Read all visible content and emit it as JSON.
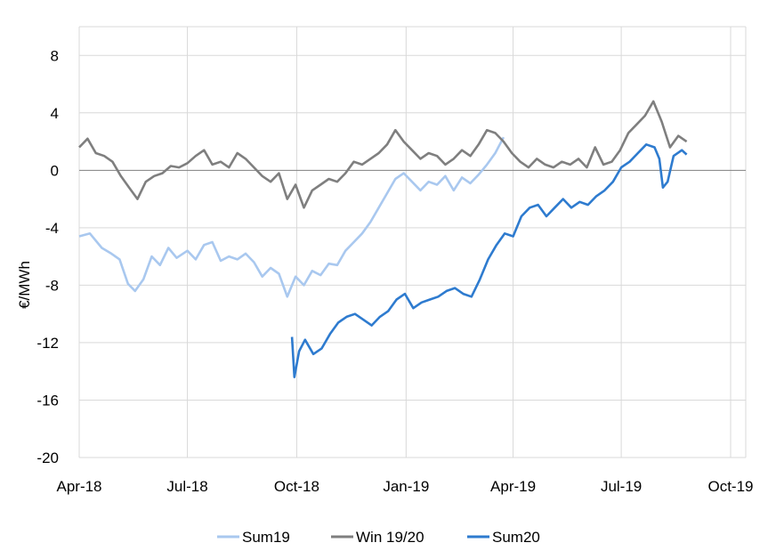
{
  "chart_data": {
    "type": "line",
    "title": "",
    "xlabel": "",
    "ylabel": "€/MWh",
    "ylim": [
      -20,
      10
    ],
    "yticks": [
      8,
      4,
      0,
      -4,
      -8,
      -12,
      -16,
      -20
    ],
    "xlim": [
      "2018-04-01",
      "2019-10-10"
    ],
    "xticks": [
      {
        "date": "2018-04-01",
        "label": "Apr-18"
      },
      {
        "date": "2018-07-01",
        "label": "Jul-18"
      },
      {
        "date": "2018-10-01",
        "label": "Oct-18"
      },
      {
        "date": "2019-01-01",
        "label": "Jan-19"
      },
      {
        "date": "2019-04-01",
        "label": "Apr-19"
      },
      {
        "date": "2019-07-01",
        "label": "Jul-19"
      },
      {
        "date": "2019-10-01",
        "label": "Oct-19"
      }
    ],
    "grid": true,
    "legend_position": "bottom",
    "series": [
      {
        "name": "Sum19",
        "color": "#a9c8ef",
        "points": [
          [
            "2018-04-01",
            -4.6
          ],
          [
            "2018-04-10",
            -4.4
          ],
          [
            "2018-04-20",
            -5.4
          ],
          [
            "2018-04-28",
            -5.8
          ],
          [
            "2018-05-05",
            -6.2
          ],
          [
            "2018-05-12",
            -7.9
          ],
          [
            "2018-05-18",
            -8.4
          ],
          [
            "2018-05-25",
            -7.6
          ],
          [
            "2018-06-01",
            -6.0
          ],
          [
            "2018-06-08",
            -6.6
          ],
          [
            "2018-06-15",
            -5.4
          ],
          [
            "2018-06-22",
            -6.1
          ],
          [
            "2018-07-01",
            -5.6
          ],
          [
            "2018-07-08",
            -6.2
          ],
          [
            "2018-07-15",
            -5.2
          ],
          [
            "2018-07-22",
            -5.0
          ],
          [
            "2018-07-29",
            -6.3
          ],
          [
            "2018-08-05",
            -6.0
          ],
          [
            "2018-08-12",
            -6.2
          ],
          [
            "2018-08-19",
            -5.8
          ],
          [
            "2018-08-26",
            -6.4
          ],
          [
            "2018-09-02",
            -7.4
          ],
          [
            "2018-09-09",
            -6.8
          ],
          [
            "2018-09-16",
            -7.2
          ],
          [
            "2018-09-23",
            -8.8
          ],
          [
            "2018-09-30",
            -7.4
          ],
          [
            "2018-10-07",
            -8.0
          ],
          [
            "2018-10-14",
            -7.0
          ],
          [
            "2018-10-21",
            -7.3
          ],
          [
            "2018-10-28",
            -6.5
          ],
          [
            "2018-11-04",
            -6.6
          ],
          [
            "2018-11-11",
            -5.6
          ],
          [
            "2018-11-18",
            -5.0
          ],
          [
            "2018-11-25",
            -4.4
          ],
          [
            "2018-12-02",
            -3.6
          ],
          [
            "2018-12-09",
            -2.6
          ],
          [
            "2018-12-16",
            -1.6
          ],
          [
            "2018-12-23",
            -0.6
          ],
          [
            "2018-12-30",
            -0.2
          ],
          [
            "2019-01-06",
            -0.8
          ],
          [
            "2019-01-13",
            -1.4
          ],
          [
            "2019-01-20",
            -0.8
          ],
          [
            "2019-01-27",
            -1.0
          ],
          [
            "2019-02-03",
            -0.4
          ],
          [
            "2019-02-10",
            -1.4
          ],
          [
            "2019-02-17",
            -0.5
          ],
          [
            "2019-02-24",
            -0.9
          ],
          [
            "2019-03-03",
            -0.3
          ],
          [
            "2019-03-10",
            0.4
          ],
          [
            "2019-03-17",
            1.2
          ],
          [
            "2019-03-24",
            2.3
          ]
        ]
      },
      {
        "name": "Win 19/20",
        "color": "#7f7f7f",
        "points": [
          [
            "2018-04-01",
            1.6
          ],
          [
            "2018-04-08",
            2.2
          ],
          [
            "2018-04-15",
            1.2
          ],
          [
            "2018-04-22",
            1.0
          ],
          [
            "2018-04-29",
            0.6
          ],
          [
            "2018-05-06",
            -0.4
          ],
          [
            "2018-05-13",
            -1.2
          ],
          [
            "2018-05-20",
            -2.0
          ],
          [
            "2018-05-27",
            -0.8
          ],
          [
            "2018-06-03",
            -0.4
          ],
          [
            "2018-06-10",
            -0.2
          ],
          [
            "2018-06-17",
            0.3
          ],
          [
            "2018-06-24",
            0.2
          ],
          [
            "2018-07-01",
            0.5
          ],
          [
            "2018-07-08",
            1.0
          ],
          [
            "2018-07-15",
            1.4
          ],
          [
            "2018-07-22",
            0.4
          ],
          [
            "2018-07-29",
            0.6
          ],
          [
            "2018-08-05",
            0.2
          ],
          [
            "2018-08-12",
            1.2
          ],
          [
            "2018-08-19",
            0.8
          ],
          [
            "2018-08-26",
            0.2
          ],
          [
            "2018-09-02",
            -0.4
          ],
          [
            "2018-09-09",
            -0.8
          ],
          [
            "2018-09-16",
            -0.2
          ],
          [
            "2018-09-23",
            -2.0
          ],
          [
            "2018-09-30",
            -1.0
          ],
          [
            "2018-10-07",
            -2.6
          ],
          [
            "2018-10-14",
            -1.4
          ],
          [
            "2018-10-21",
            -1.0
          ],
          [
            "2018-10-28",
            -0.6
          ],
          [
            "2018-11-04",
            -0.8
          ],
          [
            "2018-11-11",
            -0.2
          ],
          [
            "2018-11-18",
            0.6
          ],
          [
            "2018-11-25",
            0.4
          ],
          [
            "2018-12-02",
            0.8
          ],
          [
            "2018-12-09",
            1.2
          ],
          [
            "2018-12-16",
            1.8
          ],
          [
            "2018-12-23",
            2.8
          ],
          [
            "2018-12-30",
            2.0
          ],
          [
            "2019-01-06",
            1.4
          ],
          [
            "2019-01-13",
            0.8
          ],
          [
            "2019-01-20",
            1.2
          ],
          [
            "2019-01-27",
            1.0
          ],
          [
            "2019-02-03",
            0.4
          ],
          [
            "2019-02-10",
            0.8
          ],
          [
            "2019-02-17",
            1.4
          ],
          [
            "2019-02-24",
            1.0
          ],
          [
            "2019-03-03",
            1.8
          ],
          [
            "2019-03-10",
            2.8
          ],
          [
            "2019-03-17",
            2.6
          ],
          [
            "2019-03-24",
            2.0
          ],
          [
            "2019-03-31",
            1.2
          ],
          [
            "2019-04-07",
            0.6
          ],
          [
            "2019-04-14",
            0.2
          ],
          [
            "2019-04-21",
            0.8
          ],
          [
            "2019-04-28",
            0.4
          ],
          [
            "2019-05-05",
            0.2
          ],
          [
            "2019-05-12",
            0.6
          ],
          [
            "2019-05-19",
            0.4
          ],
          [
            "2019-05-26",
            0.8
          ],
          [
            "2019-06-02",
            0.2
          ],
          [
            "2019-06-09",
            1.6
          ],
          [
            "2019-06-16",
            0.4
          ],
          [
            "2019-06-23",
            0.6
          ],
          [
            "2019-06-30",
            1.4
          ],
          [
            "2019-07-07",
            2.6
          ],
          [
            "2019-07-14",
            3.2
          ],
          [
            "2019-07-21",
            3.8
          ],
          [
            "2019-07-28",
            4.8
          ],
          [
            "2019-08-04",
            3.4
          ],
          [
            "2019-08-11",
            1.6
          ],
          [
            "2019-08-18",
            2.4
          ],
          [
            "2019-08-25",
            2.0
          ]
        ]
      },
      {
        "name": "Sum20",
        "color": "#2e7bcf",
        "points": [
          [
            "2018-09-27",
            -11.6
          ],
          [
            "2018-09-29",
            -14.4
          ],
          [
            "2018-10-03",
            -12.6
          ],
          [
            "2018-10-08",
            -11.8
          ],
          [
            "2018-10-15",
            -12.8
          ],
          [
            "2018-10-22",
            -12.4
          ],
          [
            "2018-10-29",
            -11.4
          ],
          [
            "2018-11-05",
            -10.6
          ],
          [
            "2018-11-12",
            -10.2
          ],
          [
            "2018-11-19",
            -10.0
          ],
          [
            "2018-11-26",
            -10.4
          ],
          [
            "2018-12-03",
            -10.8
          ],
          [
            "2018-12-10",
            -10.2
          ],
          [
            "2018-12-17",
            -9.8
          ],
          [
            "2018-12-24",
            -9.0
          ],
          [
            "2018-12-31",
            -8.6
          ],
          [
            "2019-01-07",
            -9.6
          ],
          [
            "2019-01-14",
            -9.2
          ],
          [
            "2019-01-21",
            -9.0
          ],
          [
            "2019-01-28",
            -8.8
          ],
          [
            "2019-02-04",
            -8.4
          ],
          [
            "2019-02-11",
            -8.2
          ],
          [
            "2019-02-18",
            -8.6
          ],
          [
            "2019-02-25",
            -8.8
          ],
          [
            "2019-03-04",
            -7.6
          ],
          [
            "2019-03-11",
            -6.2
          ],
          [
            "2019-03-18",
            -5.2
          ],
          [
            "2019-03-25",
            -4.4
          ],
          [
            "2019-04-01",
            -4.6
          ],
          [
            "2019-04-08",
            -3.2
          ],
          [
            "2019-04-15",
            -2.6
          ],
          [
            "2019-04-22",
            -2.4
          ],
          [
            "2019-04-29",
            -3.2
          ],
          [
            "2019-05-06",
            -2.6
          ],
          [
            "2019-05-13",
            -2.0
          ],
          [
            "2019-05-20",
            -2.6
          ],
          [
            "2019-05-27",
            -2.2
          ],
          [
            "2019-06-03",
            -2.4
          ],
          [
            "2019-06-10",
            -1.8
          ],
          [
            "2019-06-17",
            -1.4
          ],
          [
            "2019-06-24",
            -0.8
          ],
          [
            "2019-07-01",
            0.2
          ],
          [
            "2019-07-08",
            0.6
          ],
          [
            "2019-07-15",
            1.2
          ],
          [
            "2019-07-22",
            1.8
          ],
          [
            "2019-07-29",
            1.6
          ],
          [
            "2019-08-02",
            0.8
          ],
          [
            "2019-08-05",
            -1.2
          ],
          [
            "2019-08-09",
            -0.8
          ],
          [
            "2019-08-14",
            1.0
          ],
          [
            "2019-08-21",
            1.4
          ],
          [
            "2019-08-25",
            1.1
          ]
        ]
      }
    ]
  }
}
